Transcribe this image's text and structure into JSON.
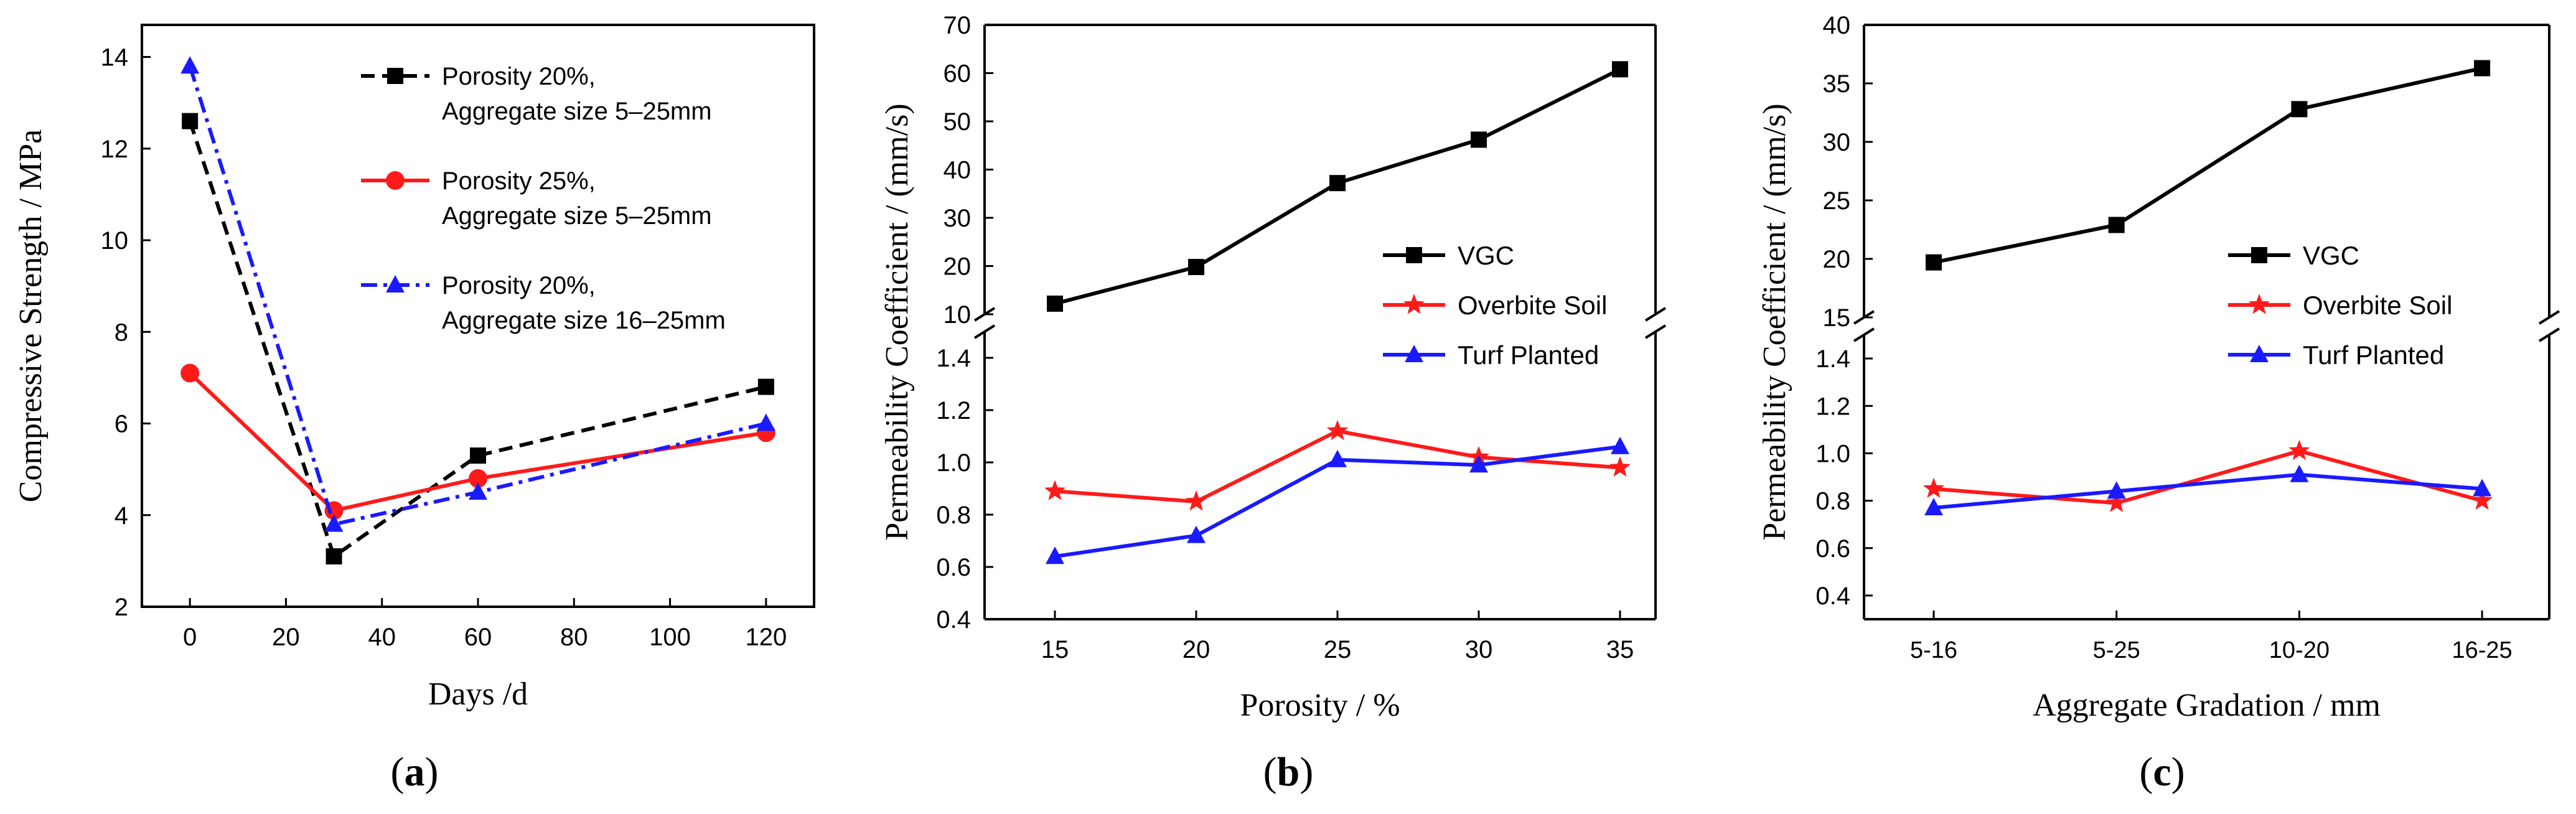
{
  "figure": {
    "panel_a_caption": "a",
    "panel_b_caption": "b",
    "panel_c_caption": "c"
  },
  "chart_data": [
    {
      "type": "line",
      "panel": "a",
      "title": "",
      "xlabel": "Days /d",
      "ylabel": "Compressive Strength / MPa",
      "xlim": [
        -10,
        130
      ],
      "ylim": [
        2,
        14.7
      ],
      "xticks": [
        0,
        20,
        40,
        60,
        80,
        100,
        120
      ],
      "yticks": [
        2,
        4,
        6,
        8,
        10,
        12,
        14
      ],
      "x": [
        0,
        30,
        60,
        120
      ],
      "legend_position": "top-right",
      "series": [
        {
          "name_line1": "Porosity 20%,",
          "name_line2": "Aggregate size 5–25mm",
          "color": "#000000",
          "marker": "square",
          "dash": "dashed",
          "values": [
            12.6,
            3.1,
            5.3,
            6.8
          ]
        },
        {
          "name_line1": "Porosity 25%,",
          "name_line2": "Aggregate size 5–25mm",
          "color": "#ff1a1a",
          "marker": "circle",
          "dash": "solid",
          "values": [
            7.1,
            4.1,
            4.8,
            5.8
          ]
        },
        {
          "name_line1": "Porosity 20%,",
          "name_line2": "Aggregate size 16–25mm",
          "color": "#1a1aff",
          "marker": "triangle",
          "dash": "dashdot",
          "values": [
            13.8,
            3.8,
            4.5,
            6.0
          ]
        }
      ]
    },
    {
      "type": "line",
      "panel": "b",
      "title": "",
      "xlabel": "Porosity / %",
      "ylabel": "Permeability Coefficient / (mm/s)",
      "categories": [
        "15",
        "20",
        "25",
        "30",
        "35"
      ],
      "broken_axis": true,
      "upper_ylim": [
        10,
        70
      ],
      "upper_yticks": [
        10,
        20,
        30,
        40,
        50,
        60,
        70
      ],
      "lower_ylim": [
        0.4,
        1.5
      ],
      "lower_yticks": [
        0.4,
        0.6,
        0.8,
        1.0,
        1.2,
        1.4
      ],
      "legend_position": "right",
      "series": [
        {
          "name": "VGC",
          "color": "#000000",
          "marker": "square",
          "segment": "upper",
          "values": [
            12.2,
            19.8,
            37.2,
            46.2,
            60.8
          ]
        },
        {
          "name": "Overbite Soil",
          "color": "#ff1a1a",
          "marker": "star",
          "segment": "lower",
          "values": [
            0.89,
            0.85,
            1.12,
            1.02,
            0.98
          ]
        },
        {
          "name": "Turf Planted",
          "color": "#1a1aff",
          "marker": "triangle",
          "segment": "lower",
          "values": [
            0.64,
            0.72,
            1.01,
            0.99,
            1.06
          ]
        }
      ]
    },
    {
      "type": "line",
      "panel": "c",
      "title": "",
      "xlabel": "Aggregate Gradation / mm",
      "ylabel": "Permeability Coefficient / (mm/s)",
      "categories": [
        "5-16",
        "5-25",
        "10-20",
        "16-25"
      ],
      "broken_axis": true,
      "upper_ylim": [
        15,
        40
      ],
      "upper_yticks": [
        15,
        20,
        25,
        30,
        35,
        40
      ],
      "lower_ylim": [
        0.3,
        1.5
      ],
      "lower_yticks": [
        0.4,
        0.6,
        0.8,
        1.0,
        1.2,
        1.4
      ],
      "legend_position": "right",
      "series": [
        {
          "name": "VGC",
          "color": "#000000",
          "marker": "square",
          "segment": "upper",
          "values": [
            19.7,
            22.9,
            32.8,
            36.3
          ]
        },
        {
          "name": "Overbite Soil",
          "color": "#ff1a1a",
          "marker": "star",
          "segment": "lower",
          "values": [
            0.85,
            0.79,
            1.01,
            0.8
          ]
        },
        {
          "name": "Turf Planted",
          "color": "#1a1aff",
          "marker": "triangle",
          "segment": "lower",
          "values": [
            0.77,
            0.84,
            0.91,
            0.85
          ]
        }
      ]
    }
  ]
}
